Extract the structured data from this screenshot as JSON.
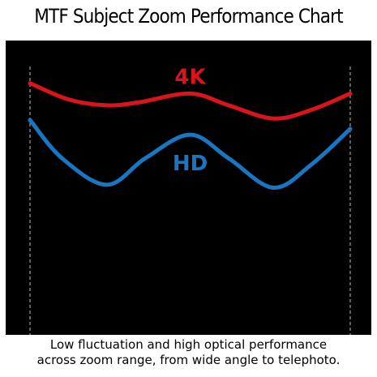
{
  "title": "MTF Subject Zoom Performance Chart",
  "caption": {
    "line1": "Low fluctuation and high optical performance",
    "line2": "across zoom range, from wide angle to telephoto."
  },
  "colors": {
    "background": "#000000",
    "series_4k": "#d9141c",
    "series_hd": "#1a76c2",
    "boundary": "#bbbbbb"
  },
  "chart_data": {
    "type": "line",
    "xlabel": "",
    "ylabel": "",
    "xlim": [
      0,
      1
    ],
    "ylim": [
      0,
      1
    ],
    "grid": false,
    "boundaries": [
      0,
      1
    ],
    "series": [
      {
        "name": "4K",
        "x": [
          0,
          0.12,
          0.24,
          0.34,
          0.5,
          0.62,
          0.76,
          0.88,
          1
        ],
        "values": [
          0.855,
          0.8,
          0.78,
          0.79,
          0.82,
          0.78,
          0.735,
          0.765,
          0.82
        ]
      },
      {
        "name": "HD",
        "x": [
          0,
          0.1,
          0.24,
          0.36,
          0.5,
          0.62,
          0.76,
          0.88,
          1
        ],
        "values": [
          0.73,
          0.6,
          0.51,
          0.6,
          0.68,
          0.6,
          0.5,
          0.58,
          0.7
        ]
      }
    ]
  }
}
